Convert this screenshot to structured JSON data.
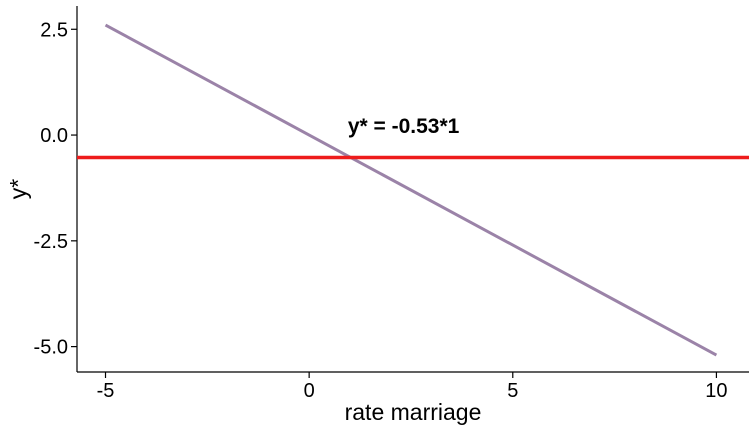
{
  "chart_data": {
    "type": "line",
    "xlabel": "rate marriage",
    "ylabel": "y*",
    "xlim": [
      -5.7,
      10.8
    ],
    "ylim": [
      -5.6,
      3.05
    ],
    "xticks": [
      -5,
      0,
      5,
      10
    ],
    "yticks": [
      2.5,
      0.0,
      -2.5,
      -5.0
    ],
    "xtick_labels": [
      "-5",
      "0",
      "5",
      "10"
    ],
    "ytick_labels": [
      "2.5",
      "0.0",
      "-2.5",
      "-5.0"
    ],
    "grid": false,
    "series": [
      {
        "x": [
          -5,
          10
        ],
        "y": [
          2.6,
          -5.2
        ],
        "color": "#9b83a8"
      }
    ],
    "hlines": [
      {
        "y": -0.53,
        "color": "#ee1c1c"
      }
    ],
    "annotations": [
      {
        "text": "y* = -0.53*1",
        "x": 0.95,
        "y": 0.05
      }
    ]
  }
}
